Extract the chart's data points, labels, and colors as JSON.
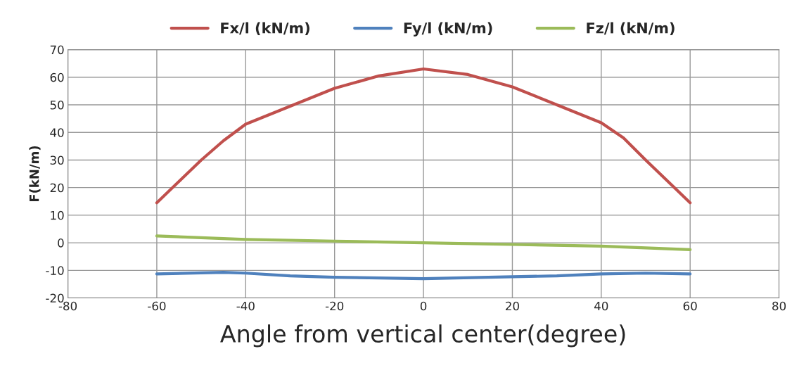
{
  "chart_data": {
    "type": "line",
    "xlabel": "Angle from vertical center(degree)",
    "ylabel": "F(kN/m)",
    "xlim": [
      -80,
      80
    ],
    "xticks": [
      -80,
      -60,
      -40,
      -20,
      0,
      20,
      40,
      60,
      80
    ],
    "ylim": [
      -20,
      70
    ],
    "yticks": [
      -20,
      -10,
      0,
      10,
      20,
      30,
      40,
      50,
      60,
      70
    ],
    "grid": true,
    "legend": "top",
    "marker": "none",
    "line_style": "solid",
    "series": [
      {
        "name": "Fx/l (kN/m)",
        "color": "#c0504d",
        "x": [
          -60,
          -50,
          -45,
          -40,
          -30,
          -20,
          -10,
          0,
          10,
          20,
          30,
          40,
          45,
          50,
          60
        ],
        "values": [
          14.5,
          30,
          37,
          43,
          49.5,
          56,
          60.5,
          63,
          61,
          56.5,
          50,
          43.5,
          38,
          30,
          14.5
        ]
      },
      {
        "name": "Fy/l (kN/m)",
        "color": "#4f81bd",
        "x": [
          -60,
          -45,
          -40,
          -30,
          -20,
          0,
          20,
          30,
          40,
          50,
          60
        ],
        "values": [
          -11.3,
          -10.7,
          -11,
          -12,
          -12.5,
          -13,
          -12.3,
          -12,
          -11.3,
          -11,
          -11.3
        ]
      },
      {
        "name": "Fz/l (kN/m)",
        "color": "#9bbb59",
        "x": [
          -60,
          -40,
          -20,
          0,
          20,
          40,
          60
        ],
        "values": [
          2.5,
          1.2,
          0.6,
          0,
          -0.6,
          -1.2,
          -2.5
        ]
      }
    ]
  }
}
